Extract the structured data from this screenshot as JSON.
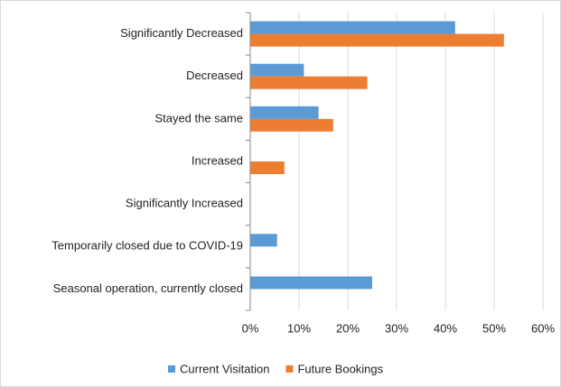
{
  "chart_data": {
    "type": "hbar",
    "categories": [
      "Significantly Decreased",
      "Decreased",
      "Stayed the same",
      "Increased",
      "Significantly Increased",
      "Temporarily closed due to COVID-19",
      "Seasonal operation, currently closed"
    ],
    "series": [
      {
        "name": "Current Visitation",
        "color": "#5b9bd5",
        "values": [
          42,
          11,
          14,
          0,
          0,
          5.5,
          25
        ]
      },
      {
        "name": "Future Bookings",
        "color": "#ed7d31",
        "values": [
          52,
          24,
          17,
          7,
          0,
          0,
          0
        ]
      }
    ],
    "xlim": [
      0,
      60
    ],
    "xticks": [
      {
        "value": 0,
        "label": "0%"
      },
      {
        "value": 10,
        "label": "10%"
      },
      {
        "value": 20,
        "label": "20%"
      },
      {
        "value": 30,
        "label": "30%"
      },
      {
        "value": 40,
        "label": "40%"
      },
      {
        "value": 50,
        "label": "50%"
      },
      {
        "value": 60,
        "label": "60%"
      }
    ],
    "grid": true,
    "legend": "bottom"
  }
}
